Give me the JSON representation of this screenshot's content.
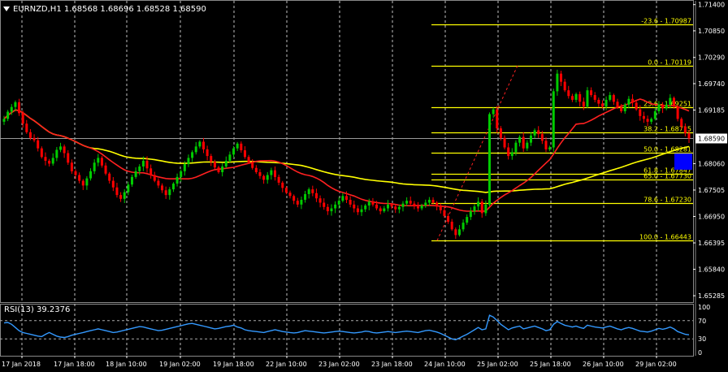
{
  "header": {
    "symbol_label": "EURNZD,H1  1.68568 1.68696 1.68528 1.68590",
    "menu_arrow": "triangle-down-icon"
  },
  "rsi": {
    "label": "RSI(13) 39.2376",
    "levels": [
      "100",
      "70",
      "30",
      "0"
    ],
    "level_values": [
      100,
      70,
      30,
      0
    ]
  },
  "price_axis": {
    "ticks": [
      "1.71400",
      "1.70850",
      "1.70290",
      "1.69740",
      "1.69185",
      "1.68060",
      "1.67505",
      "1.66950",
      "1.66395",
      "1.65840",
      "1.65285"
    ],
    "tick_values": [
      1.714,
      1.7085,
      1.7029,
      1.6974,
      1.69185,
      1.6806,
      1.67505,
      1.6695,
      1.66395,
      1.6584,
      1.65285
    ],
    "current_price": "1.68590",
    "current_value": 1.6859,
    "marker_color": "#0000ff"
  },
  "time_axis": {
    "labels": [
      "17 Jan 2018",
      "17 Jan 18:00",
      "18 Jan 10:00",
      "19 Jan 02:00",
      "19 Jan 18:00",
      "22 Jan 10:00",
      "23 Jan 02:00",
      "23 Jan 18:00",
      "24 Jan 10:00",
      "25 Jan 02:00",
      "25 Jan 18:00",
      "26 Jan 10:00",
      "29 Jan 02:00"
    ]
  },
  "fibonacci": {
    "color": "#ffff00",
    "levels": [
      {
        "label": "-23.6 - 1.70987",
        "value": 1.70987
      },
      {
        "label": "0.0 - 1.70119",
        "value": 1.70119
      },
      {
        "label": "23.6 - 1.69251",
        "value": 1.69251
      },
      {
        "label": "38.2 - 1.68715",
        "value": 1.68715
      },
      {
        "label": "50.0 - 1.68281",
        "value": 1.68281
      },
      {
        "label": "61.8 - 1.67847",
        "value": 1.67847
      },
      {
        "label": "65.0 - 1.67730",
        "value": 1.6773
      },
      {
        "label": "78.6 - 1.67230",
        "value": 1.6723
      },
      {
        "label": "100.0 - 1.66443",
        "value": 1.66443
      }
    ]
  },
  "colors": {
    "background": "#000000",
    "bull_candle": "#00cc00",
    "bear_candle": "#ff0000",
    "ma_fast": "#ff2020",
    "ma_slow": "#ffff00",
    "rsi_line": "#3399ff",
    "grid": "#ffffff",
    "text": "#ffffff"
  },
  "chart_data": {
    "type": "candlestick",
    "symbol": "EURNZD",
    "timeframe": "H1",
    "ohlc_last": {
      "open": 1.68568,
      "high": 1.68696,
      "low": 1.68528,
      "close": 1.6859
    },
    "ylim": [
      1.6515,
      1.7148
    ],
    "closes": [
      1.69,
      1.6915,
      1.6925,
      1.6935,
      1.6912,
      1.689,
      1.6872,
      1.686,
      1.6855,
      1.6838,
      1.682,
      1.6812,
      1.6806,
      1.6818,
      1.6835,
      1.6842,
      1.6828,
      1.6808,
      1.679,
      1.6782,
      1.677,
      1.676,
      1.6775,
      1.679,
      1.6808,
      1.6818,
      1.6802,
      1.6785,
      1.677,
      1.6756,
      1.674,
      1.6732,
      1.6746,
      1.6762,
      1.6778,
      1.679,
      1.68,
      1.6812,
      1.6796,
      1.6782,
      1.677,
      1.676,
      1.675,
      1.674,
      1.6752,
      1.6764,
      1.6778,
      1.679,
      1.6805,
      1.6818,
      1.683,
      1.6842,
      1.6852,
      1.6836,
      1.6822,
      1.681,
      1.6798,
      1.6788,
      1.68,
      1.6812,
      1.6825,
      1.6838,
      1.6848,
      1.6834,
      1.682,
      1.6808,
      1.6797,
      1.6788,
      1.678,
      1.6772,
      1.6782,
      1.6792,
      1.6778,
      1.6766,
      1.6755,
      1.6745,
      1.6738,
      1.6728,
      1.672,
      1.673,
      1.6742,
      1.6752,
      1.6744,
      1.6733,
      1.6724,
      1.6715,
      1.6706,
      1.6712,
      1.672,
      1.6728,
      1.6738,
      1.673,
      1.672,
      1.6712,
      1.6704,
      1.671,
      1.6718,
      1.6726,
      1.672,
      1.6712,
      1.6706,
      1.6712,
      1.672,
      1.6716,
      1.671,
      1.6715,
      1.6722,
      1.6728,
      1.6722,
      1.6716,
      1.6712,
      1.6718,
      1.6724,
      1.673,
      1.6724,
      1.6716,
      1.6708,
      1.6696,
      1.6684,
      1.6668,
      1.6656,
      1.6668,
      1.6682,
      1.6694,
      1.6706,
      1.6716,
      1.6726,
      1.6702,
      1.672,
      1.691,
      1.692,
      1.688,
      1.686,
      1.684,
      1.6822,
      1.683,
      1.685,
      1.6862,
      1.6838,
      1.685,
      1.6865,
      1.6876,
      1.6868,
      1.6854,
      1.6836,
      1.684,
      1.6958,
      1.6995,
      1.6978,
      1.696,
      1.6948,
      1.694,
      1.6952,
      1.6936,
      1.6926,
      1.696,
      1.695,
      1.694,
      1.6932,
      1.6926,
      1.694,
      1.695,
      1.6936,
      1.6924,
      1.6916,
      1.693,
      1.6942,
      1.6934,
      1.692,
      1.6906,
      1.69,
      1.6894,
      1.69,
      1.6916,
      1.693,
      1.6922,
      1.693,
      1.6944,
      1.6926,
      1.69,
      1.6884,
      1.687,
      1.6859
    ],
    "rsi_values": [
      65,
      66,
      62,
      55,
      48,
      44,
      42,
      40,
      38,
      36,
      35,
      40,
      44,
      40,
      36,
      34,
      33,
      35,
      38,
      40,
      42,
      44,
      46,
      48,
      50,
      52,
      50,
      48,
      46,
      44,
      45,
      47,
      49,
      51,
      53,
      55,
      57,
      56,
      54,
      52,
      50,
      48,
      49,
      51,
      53,
      55,
      57,
      59,
      61,
      63,
      64,
      62,
      60,
      58,
      56,
      54,
      52,
      53,
      55,
      57,
      58,
      60,
      56,
      54,
      50,
      48,
      47,
      46,
      45,
      44,
      46,
      48,
      50,
      48,
      46,
      45,
      44,
      43,
      44,
      46,
      48,
      47,
      46,
      45,
      44,
      43,
      44,
      45,
      46,
      47,
      46,
      45,
      44,
      43,
      44,
      45,
      47,
      46,
      44,
      43,
      44,
      45,
      46,
      45,
      44,
      45,
      46,
      47,
      46,
      45,
      44,
      46,
      48,
      49,
      47,
      45,
      42,
      38,
      34,
      30,
      28,
      32,
      36,
      40,
      45,
      50,
      55,
      50,
      52,
      82,
      78,
      70,
      62,
      56,
      50,
      54,
      56,
      58,
      52,
      54,
      56,
      58,
      55,
      52,
      48,
      50,
      62,
      68,
      64,
      60,
      58,
      56,
      58,
      55,
      53,
      60,
      58,
      56,
      55,
      54,
      56,
      58,
      55,
      52,
      50,
      53,
      55,
      53,
      50,
      47,
      46,
      45,
      47,
      50,
      53,
      51,
      53,
      56,
      52,
      46,
      43,
      40,
      39
    ]
  }
}
